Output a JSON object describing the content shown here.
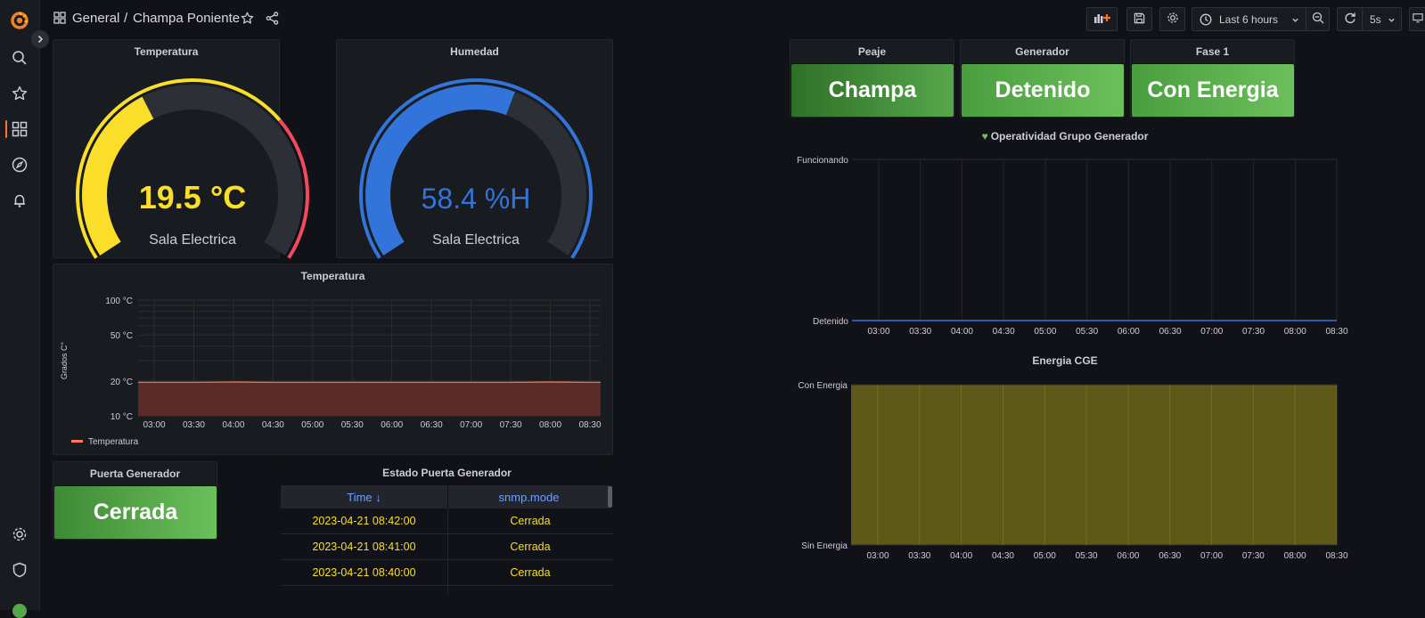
{
  "breadcrumb": {
    "folder": "General",
    "separator": "/",
    "dashboard": "Champa Poniente"
  },
  "toolbar": {
    "time_range": "Last 6 hours",
    "refresh_interval": "5s"
  },
  "colors": {
    "accent": "#ff7124",
    "green": "#56a64b",
    "yellow": "#fade2a",
    "blue": "#3274d9",
    "red": "#f2495c",
    "cge_fill": "#5e5919"
  },
  "gauge_temp": {
    "title": "Temperatura",
    "value_text": "19.5 °C",
    "label": "Sala Electrica",
    "value": 19.5,
    "min": 0,
    "max": 50,
    "thresholds": [
      {
        "from": 0,
        "to": 35,
        "color": "#fade2a"
      },
      {
        "from": 35,
        "to": 50,
        "color": "#f2495c"
      }
    ]
  },
  "gauge_hum": {
    "title": "Humedad",
    "value_text": "58.4 %H",
    "label": "Sala Electrica",
    "value": 58.4,
    "min": 0,
    "max": 100,
    "thresholds": [
      {
        "from": 0,
        "to": 100,
        "color": "#3274d9"
      }
    ]
  },
  "temp_chart": {
    "title": "Temperatura",
    "ylabel": "Grados C°",
    "chart_data": {
      "type": "area",
      "title": "Temperatura",
      "ylabel": "Grados C°",
      "y_scale": "log",
      "yticks": [
        {
          "value": 10,
          "label": "10 °C"
        },
        {
          "value": 20,
          "label": "20 °C"
        },
        {
          "value": 50,
          "label": "50 °C"
        },
        {
          "value": 100,
          "label": "100 °C"
        }
      ],
      "ylim": [
        10,
        100
      ],
      "x": [
        "03:00",
        "03:30",
        "04:00",
        "04:30",
        "05:00",
        "05:30",
        "06:00",
        "06:30",
        "07:00",
        "07:30",
        "08:00",
        "08:30"
      ],
      "series": [
        {
          "name": "Temperatura",
          "color": "#ff7f50",
          "values": [
            19.5,
            19.5,
            19.6,
            19.5,
            19.5,
            19.5,
            19.5,
            19.5,
            19.5,
            19.5,
            19.6,
            19.5
          ]
        }
      ],
      "legend": "bottom-left"
    }
  },
  "stats": [
    {
      "title": "Peaje",
      "value": "Champa",
      "color": "#3d8a35"
    },
    {
      "title": "Generador",
      "value": "Detenido",
      "color": "#56a64b"
    },
    {
      "title": "Fase 1",
      "value": "Con Energia",
      "color": "#56a64b"
    }
  ],
  "gen_chart": {
    "title": "Operatividad Grupo Generador",
    "chart_data": {
      "type": "line",
      "title": "Operatividad Grupo Generador",
      "ycategories": [
        "Detenido",
        "Funcionando"
      ],
      "x": [
        "03:00",
        "03:30",
        "04:00",
        "04:30",
        "05:00",
        "05:30",
        "06:00",
        "06:30",
        "07:00",
        "07:30",
        "08:00",
        "08:30"
      ],
      "series": [
        {
          "values": [
            "Detenido",
            "Detenido",
            "Detenido",
            "Detenido",
            "Detenido",
            "Detenido",
            "Detenido",
            "Detenido",
            "Detenido",
            "Detenido",
            "Detenido",
            "Detenido"
          ]
        }
      ]
    }
  },
  "cge_chart": {
    "title": "Energia CGE",
    "chart_data": {
      "type": "area",
      "title": "Energia CGE",
      "ycategories": [
        "Sin Energia",
        "Con Energia"
      ],
      "x": [
        "03:00",
        "03:30",
        "04:00",
        "04:30",
        "05:00",
        "05:30",
        "06:00",
        "06:30",
        "07:00",
        "07:30",
        "08:00",
        "08:30"
      ],
      "series": [
        {
          "values": [
            "Con Energia",
            "Con Energia",
            "Con Energia",
            "Con Energia",
            "Con Energia",
            "Con Energia",
            "Con Energia",
            "Con Energia",
            "Con Energia",
            "Con Energia",
            "Con Energia",
            "Con Energia"
          ]
        }
      ]
    }
  },
  "door_stat": {
    "title": "Puerta Generador",
    "value": "Cerrada"
  },
  "door_table": {
    "title": "Estado Puerta Generador",
    "columns": [
      "Time ↓",
      "snmp.mode"
    ],
    "rows": [
      [
        "2023-04-21 08:42:00",
        "Cerrada"
      ],
      [
        "2023-04-21 08:41:00",
        "Cerrada"
      ],
      [
        "2023-04-21 08:40:00",
        "Cerrada"
      ]
    ]
  }
}
